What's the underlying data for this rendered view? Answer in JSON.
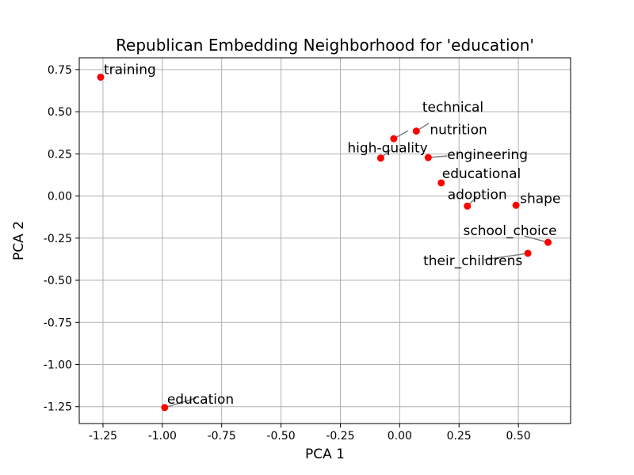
{
  "chart_data": {
    "type": "scatter",
    "title": "Republican Embedding Neighborhood for 'education'",
    "xlabel": "PCA 1",
    "ylabel": "PCA 2",
    "xlim": [
      -1.35,
      0.72
    ],
    "ylim": [
      -1.35,
      0.82
    ],
    "xticks": [
      "-1.25",
      "-1.00",
      "-0.75",
      "-0.50",
      "-0.25",
      "0.00",
      "0.25",
      "0.50"
    ],
    "yticks": [
      "0.75",
      "0.50",
      "0.25",
      "0.00",
      "-0.25",
      "-0.50",
      "-0.75",
      "-1.00",
      "-1.25"
    ],
    "grid": true,
    "marker_color": "#ff0000",
    "points": [
      {
        "label": "training",
        "x": -1.26,
        "y": 0.705
      },
      {
        "label": "technical",
        "x": -0.025,
        "y": 0.34
      },
      {
        "label": "nutrition",
        "x": 0.07,
        "y": 0.385
      },
      {
        "label": "high-quality",
        "x": -0.08,
        "y": 0.225
      },
      {
        "label": "engineering",
        "x": 0.12,
        "y": 0.228
      },
      {
        "label": "educational",
        "x": 0.175,
        "y": 0.078
      },
      {
        "label": "adoption",
        "x": 0.285,
        "y": -0.06
      },
      {
        "label": "shape",
        "x": 0.49,
        "y": -0.055
      },
      {
        "label": "school_choice",
        "x": 0.625,
        "y": -0.275
      },
      {
        "label": "their_childrens",
        "x": 0.54,
        "y": -0.34
      },
      {
        "label": "education",
        "x": -0.99,
        "y": -1.255
      }
    ]
  }
}
